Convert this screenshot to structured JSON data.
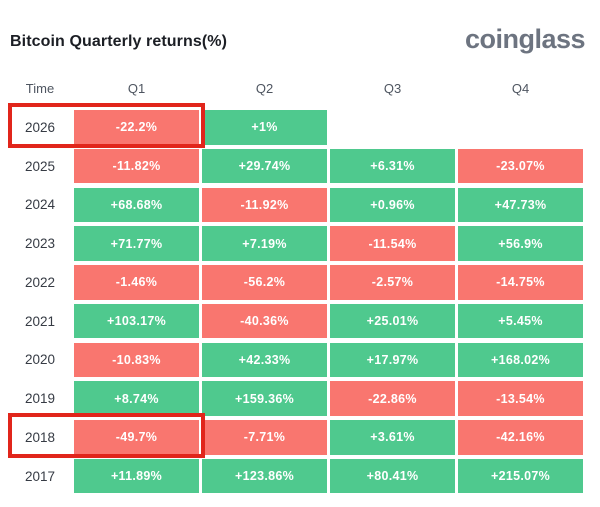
{
  "header": {
    "title": "Bitcoin Quarterly returns(%)",
    "logo_text": "coinglass"
  },
  "colors": {
    "positive_cell": "#4FC98E",
    "negative_cell": "#F9766F",
    "highlight_border": "#E1251B",
    "title_text": "#1B1E24",
    "logo_text": "#6D7480",
    "year_text": "#363B44",
    "header_text": "#4E5560",
    "cell_text": "#FFFFFF",
    "background": "#FFFFFF"
  },
  "table": {
    "columns": [
      "Time",
      "Q1",
      "Q2",
      "Q3",
      "Q4"
    ],
    "rows": [
      {
        "year": "2026",
        "highlight_q1": true,
        "cells": [
          {
            "text": "-22.2%",
            "sign": "neg"
          },
          {
            "text": "+1%",
            "sign": "pos"
          },
          null,
          null
        ]
      },
      {
        "year": "2025",
        "highlight_q1": false,
        "cells": [
          {
            "text": "-11.82%",
            "sign": "neg"
          },
          {
            "text": "+29.74%",
            "sign": "pos"
          },
          {
            "text": "+6.31%",
            "sign": "pos"
          },
          {
            "text": "-23.07%",
            "sign": "neg"
          }
        ]
      },
      {
        "year": "2024",
        "highlight_q1": false,
        "cells": [
          {
            "text": "+68.68%",
            "sign": "pos"
          },
          {
            "text": "-11.92%",
            "sign": "neg"
          },
          {
            "text": "+0.96%",
            "sign": "pos"
          },
          {
            "text": "+47.73%",
            "sign": "pos"
          }
        ]
      },
      {
        "year": "2023",
        "highlight_q1": false,
        "cells": [
          {
            "text": "+71.77%",
            "sign": "pos"
          },
          {
            "text": "+7.19%",
            "sign": "pos"
          },
          {
            "text": "-11.54%",
            "sign": "neg"
          },
          {
            "text": "+56.9%",
            "sign": "pos"
          }
        ]
      },
      {
        "year": "2022",
        "highlight_q1": false,
        "cells": [
          {
            "text": "-1.46%",
            "sign": "neg"
          },
          {
            "text": "-56.2%",
            "sign": "neg"
          },
          {
            "text": "-2.57%",
            "sign": "neg"
          },
          {
            "text": "-14.75%",
            "sign": "neg"
          }
        ]
      },
      {
        "year": "2021",
        "highlight_q1": false,
        "cells": [
          {
            "text": "+103.17%",
            "sign": "pos"
          },
          {
            "text": "-40.36%",
            "sign": "neg"
          },
          {
            "text": "+25.01%",
            "sign": "pos"
          },
          {
            "text": "+5.45%",
            "sign": "pos"
          }
        ]
      },
      {
        "year": "2020",
        "highlight_q1": false,
        "cells": [
          {
            "text": "-10.83%",
            "sign": "neg"
          },
          {
            "text": "+42.33%",
            "sign": "pos"
          },
          {
            "text": "+17.97%",
            "sign": "pos"
          },
          {
            "text": "+168.02%",
            "sign": "pos"
          }
        ]
      },
      {
        "year": "2019",
        "highlight_q1": false,
        "cells": [
          {
            "text": "+8.74%",
            "sign": "pos"
          },
          {
            "text": "+159.36%",
            "sign": "pos"
          },
          {
            "text": "-22.86%",
            "sign": "neg"
          },
          {
            "text": "-13.54%",
            "sign": "neg"
          }
        ]
      },
      {
        "year": "2018",
        "highlight_q1": true,
        "cells": [
          {
            "text": "-49.7%",
            "sign": "neg"
          },
          {
            "text": "-7.71%",
            "sign": "neg"
          },
          {
            "text": "+3.61%",
            "sign": "pos"
          },
          {
            "text": "-42.16%",
            "sign": "neg"
          }
        ]
      },
      {
        "year": "2017",
        "highlight_q1": false,
        "cells": [
          {
            "text": "+11.89%",
            "sign": "pos"
          },
          {
            "text": "+123.86%",
            "sign": "pos"
          },
          {
            "text": "+80.41%",
            "sign": "pos"
          },
          {
            "text": "+215.07%",
            "sign": "pos"
          }
        ]
      }
    ]
  },
  "chart_data": {
    "type": "heatmap",
    "title": "Bitcoin Quarterly returns(%)",
    "unit": "%",
    "columns": [
      "Q1",
      "Q2",
      "Q3",
      "Q4"
    ],
    "years": [
      "2026",
      "2025",
      "2024",
      "2023",
      "2022",
      "2021",
      "2020",
      "2019",
      "2018",
      "2017"
    ],
    "values": [
      [
        -22.2,
        1,
        null,
        null
      ],
      [
        -11.82,
        29.74,
        6.31,
        -23.07
      ],
      [
        68.68,
        -11.92,
        0.96,
        47.73
      ],
      [
        71.77,
        7.19,
        -11.54,
        56.9
      ],
      [
        -1.46,
        -56.2,
        -2.57,
        -14.75
      ],
      [
        103.17,
        -40.36,
        25.01,
        5.45
      ],
      [
        -10.83,
        42.33,
        17.97,
        168.02
      ],
      [
        8.74,
        159.36,
        -22.86,
        -13.54
      ],
      [
        -49.7,
        -7.71,
        3.61,
        -42.16
      ],
      [
        11.89,
        123.86,
        80.41,
        215.07
      ]
    ],
    "color_rule": "green if value > 0 else red",
    "positive_color": "#4FC98E",
    "negative_color": "#F9766F",
    "highlighted_cells": [
      {
        "year": "2026",
        "quarter": "Q1",
        "value": -22.2
      },
      {
        "year": "2018",
        "quarter": "Q1",
        "value": -49.7
      }
    ],
    "legend_position": "none",
    "grid": false
  }
}
